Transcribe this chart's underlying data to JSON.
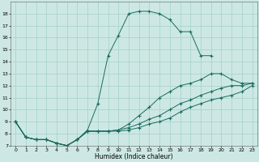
{
  "title": "",
  "xlabel": "Humidex (Indice chaleur)",
  "bg_color": "#cde8e4",
  "grid_color": "#aad4cc",
  "line_color": "#1a6b60",
  "xlim": [
    -0.5,
    23.5
  ],
  "ylim": [
    7,
    19
  ],
  "xticks": [
    0,
    1,
    2,
    3,
    4,
    5,
    6,
    7,
    8,
    9,
    10,
    11,
    12,
    13,
    14,
    15,
    16,
    17,
    18,
    19,
    20,
    21,
    22,
    23
  ],
  "yticks": [
    7,
    8,
    9,
    10,
    11,
    12,
    13,
    14,
    15,
    16,
    17,
    18
  ],
  "series": [
    {
      "x": [
        0,
        1,
        2,
        3,
        4,
        5,
        6,
        7,
        8,
        9,
        10,
        11,
        12,
        13,
        14,
        15,
        16,
        17,
        18,
        19
      ],
      "y": [
        9,
        7.7,
        7.5,
        7.5,
        7.2,
        7.0,
        7.5,
        8.3,
        10.5,
        14.5,
        16.2,
        18.0,
        18.2,
        18.2,
        18.0,
        17.5,
        16.5,
        16.5,
        14.5,
        14.5
      ]
    },
    {
      "x": [
        0,
        1,
        2,
        3,
        4,
        5,
        6,
        7,
        8,
        9,
        10,
        11,
        12,
        13,
        14,
        15,
        16,
        17,
        18,
        19,
        20,
        21,
        22,
        23
      ],
      "y": [
        9.0,
        7.7,
        7.5,
        7.5,
        7.2,
        7.0,
        7.5,
        8.2,
        8.2,
        8.2,
        8.3,
        8.8,
        9.5,
        10.2,
        11.0,
        11.5,
        12.0,
        12.2,
        12.5,
        13.0,
        13.0,
        12.5,
        12.2,
        12.2
      ]
    },
    {
      "x": [
        0,
        1,
        2,
        3,
        4,
        5,
        6,
        7,
        8,
        9,
        10,
        11,
        12,
        13,
        14,
        15,
        16,
        17,
        18,
        19,
        20,
        21,
        22,
        23
      ],
      "y": [
        9.0,
        7.7,
        7.5,
        7.5,
        7.2,
        7.0,
        7.5,
        8.2,
        8.2,
        8.2,
        8.3,
        8.5,
        8.8,
        9.2,
        9.5,
        10.0,
        10.5,
        10.8,
        11.2,
        11.5,
        11.8,
        12.0,
        12.0,
        12.2
      ]
    },
    {
      "x": [
        0,
        1,
        2,
        3,
        4,
        5,
        6,
        7,
        8,
        9,
        10,
        11,
        12,
        13,
        14,
        15,
        16,
        17,
        18,
        19,
        20,
        21,
        22,
        23
      ],
      "y": [
        9.0,
        7.7,
        7.5,
        7.5,
        7.2,
        7.0,
        7.5,
        8.2,
        8.2,
        8.2,
        8.2,
        8.3,
        8.5,
        8.8,
        9.0,
        9.3,
        9.8,
        10.2,
        10.5,
        10.8,
        11.0,
        11.2,
        11.5,
        12.0
      ]
    }
  ]
}
